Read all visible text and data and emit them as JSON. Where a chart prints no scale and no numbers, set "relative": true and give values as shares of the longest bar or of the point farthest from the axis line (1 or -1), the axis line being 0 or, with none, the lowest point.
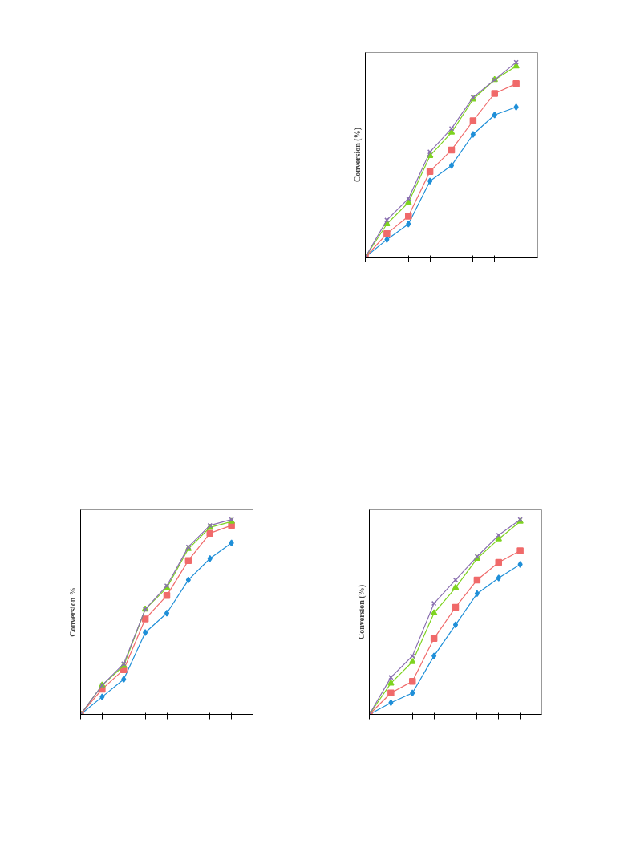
{
  "chart_data": [
    {
      "type": "line",
      "ylabel": "Conversion (%)",
      "relative": true,
      "categories": [
        null,
        null,
        null,
        null,
        null,
        null,
        null,
        null
      ],
      "grid": false,
      "series": [
        {
          "color": "#1f8fd8",
          "marker": "diamond",
          "values": [
            0,
            0.09,
            0.17,
            0.39,
            0.47,
            0.63,
            0.73,
            0.77
          ]
        },
        {
          "color": "#f06a6a",
          "marker": "square",
          "values": [
            0,
            0.12,
            0.21,
            0.44,
            0.55,
            0.7,
            0.84,
            0.89
          ]
        },
        {
          "color": "#7ed321",
          "marker": "triangle",
          "values": [
            0,
            0.17,
            0.28,
            0.52,
            0.64,
            0.81,
            0.91,
            0.98
          ]
        },
        {
          "color": "#8a6fb0",
          "marker": "cross",
          "values": [
            0,
            0.19,
            0.3,
            0.54,
            0.66,
            0.82,
            0.91,
            1
          ]
        }
      ]
    },
    {
      "type": "line",
      "ylabel": "Conversion %",
      "relative": true,
      "categories": [
        null,
        null,
        null,
        null,
        null,
        null,
        null,
        null
      ],
      "grid": false,
      "series": [
        {
          "color": "#1f8fd8",
          "marker": "diamond",
          "values": [
            0,
            0.09,
            0.18,
            0.42,
            0.52,
            0.69,
            0.8,
            0.88
          ]
        },
        {
          "color": "#f06a6a",
          "marker": "square",
          "values": [
            0,
            0.13,
            0.23,
            0.49,
            0.61,
            0.79,
            0.93,
            0.97
          ]
        },
        {
          "color": "#7ed321",
          "marker": "triangle",
          "values": [
            0,
            0.15,
            0.25,
            0.54,
            0.65,
            0.85,
            0.96,
            0.99
          ]
        },
        {
          "color": "#8a6fb0",
          "marker": "cross",
          "values": [
            0,
            0.15,
            0.26,
            0.54,
            0.66,
            0.86,
            0.97,
            1
          ]
        }
      ]
    },
    {
      "type": "line",
      "ylabel": "Conversion (%)",
      "relative": true,
      "categories": [
        null,
        null,
        null,
        null,
        null,
        null,
        null,
        null
      ],
      "grid": false,
      "series": [
        {
          "color": "#1f8fd8",
          "marker": "diamond",
          "values": [
            0,
            0.06,
            0.11,
            0.3,
            0.46,
            0.62,
            0.7,
            0.77
          ]
        },
        {
          "color": "#f06a6a",
          "marker": "square",
          "values": [
            0,
            0.11,
            0.17,
            0.39,
            0.55,
            0.69,
            0.78,
            0.84
          ]
        },
        {
          "color": "#7ed321",
          "marker": "triangle",
          "values": [
            0,
            0.16,
            0.27,
            0.52,
            0.65,
            0.8,
            0.9,
            0.99
          ]
        },
        {
          "color": "#8a6fb0",
          "marker": "cross",
          "values": [
            0,
            0.19,
            0.3,
            0.57,
            0.69,
            0.81,
            0.92,
            1
          ]
        }
      ]
    }
  ]
}
